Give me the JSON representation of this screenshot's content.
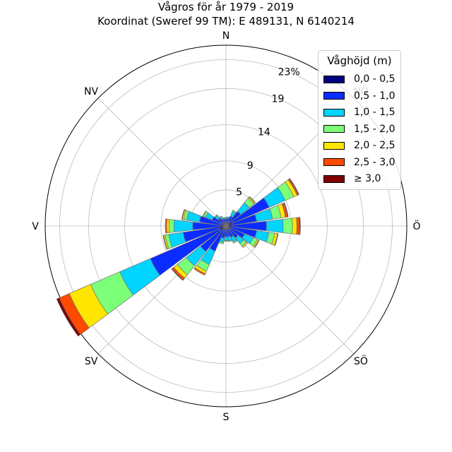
{
  "title_line1": "Vågros för år 1979 - 2019",
  "title_line2": "Koordinat (Sweref 99 TM): E 489131, N 6140214",
  "chart_data": {
    "type": "wind-rose",
    "title": "Vågros för år 1979 - 2019",
    "subtitle": "Koordinat (Sweref 99 TM): E 489131, N 6140214",
    "radial_unit": "%",
    "radial_ticks": [
      "5",
      "9",
      "14",
      "19",
      "23%"
    ],
    "radial_tick_values": [
      5,
      9,
      14,
      19,
      23
    ],
    "rmax": 25,
    "grid": true,
    "direction_labels": [
      "N",
      "NV",
      "V",
      "SV",
      "S",
      "SÖ",
      "Ö",
      "NÖ"
    ],
    "direction_angles": [
      0,
      315,
      270,
      225,
      180,
      135,
      90,
      45
    ],
    "sector_width_deg": 15,
    "legend": {
      "title": "Våghöjd (m)",
      "placement": "top-right",
      "bins": [
        "0,0 - 0,5",
        "0,5 - 1,0",
        "1,0 - 1,5",
        "1,5 - 2,0",
        "2,0 - 2,5",
        "2,5 - 3,0",
        "≥ 3,0"
      ],
      "colors": [
        "#000080",
        "#0a2cff",
        "#00d4ff",
        "#7cff79",
        "#ffe600",
        "#ff4a00",
        "#800000"
      ]
    },
    "sectors": [
      {
        "dir": 0,
        "values": [
          0.5,
          0.5,
          0.2,
          0,
          0,
          0,
          0
        ]
      },
      {
        "dir": 15,
        "values": [
          0.5,
          0.6,
          0.2,
          0,
          0,
          0,
          0
        ]
      },
      {
        "dir": 30,
        "values": [
          0.5,
          1.0,
          0.7,
          0.2,
          0,
          0,
          0
        ]
      },
      {
        "dir": 45,
        "values": [
          0.6,
          2.0,
          1.5,
          0.8,
          0.2,
          0.1,
          0
        ]
      },
      {
        "dir": 60,
        "values": [
          1.0,
          5.5,
          2.4,
          1.3,
          0.5,
          0.2,
          0.1
        ]
      },
      {
        "dir": 75,
        "values": [
          0.8,
          3.5,
          2.2,
          1.2,
          0.6,
          0.3,
          0.1
        ]
      },
      {
        "dir": 90,
        "values": [
          0.9,
          4.7,
          2.3,
          1.3,
          0.6,
          0.4,
          0.1
        ]
      },
      {
        "dir": 105,
        "values": [
          0.7,
          3.6,
          1.7,
          0.8,
          0.4,
          0.1,
          0
        ]
      },
      {
        "dir": 120,
        "values": [
          0.6,
          2.2,
          1.3,
          0.6,
          0.2,
          0.1,
          0
        ]
      },
      {
        "dir": 135,
        "values": [
          0.5,
          1.6,
          1.0,
          0.5,
          0.2,
          0,
          0
        ]
      },
      {
        "dir": 150,
        "values": [
          0.5,
          1.2,
          0.7,
          0.2,
          0,
          0,
          0
        ]
      },
      {
        "dir": 165,
        "values": [
          0.5,
          1.0,
          0.6,
          0.1,
          0,
          0,
          0
        ]
      },
      {
        "dir": 180,
        "values": [
          0.5,
          1.0,
          0.5,
          0.1,
          0,
          0,
          0
        ]
      },
      {
        "dir": 195,
        "values": [
          0.5,
          1.2,
          0.6,
          0.2,
          0,
          0,
          0
        ]
      },
      {
        "dir": 210,
        "values": [
          0.6,
          3.2,
          2.0,
          1.0,
          0.4,
          0.2,
          0
        ]
      },
      {
        "dir": 225,
        "values": [
          0.5,
          4.0,
          2.5,
          1.6,
          0.6,
          0.3,
          0.1
        ]
      },
      {
        "dir": 240,
        "values": [
          1.0,
          10.4,
          4.6,
          4.4,
          3.2,
          1.5,
          0.4
        ]
      },
      {
        "dir": 255,
        "values": [
          1.0,
          5.0,
          2.0,
          0.5,
          0.2,
          0.1,
          0
        ]
      },
      {
        "dir": 270,
        "values": [
          0.8,
          3.8,
          2.6,
          0.7,
          0.3,
          0.2,
          0
        ]
      },
      {
        "dir": 285,
        "values": [
          0.7,
          3.0,
          1.8,
          0.4,
          0.2,
          0.1,
          0
        ]
      },
      {
        "dir": 300,
        "values": [
          0.6,
          1.5,
          1.0,
          0.3,
          0.1,
          0,
          0
        ]
      },
      {
        "dir": 315,
        "values": [
          0.5,
          0.9,
          0.5,
          0.1,
          0,
          0,
          0
        ]
      },
      {
        "dir": 330,
        "values": [
          0.5,
          0.6,
          0.3,
          0.1,
          0,
          0,
          0
        ]
      },
      {
        "dir": 345,
        "values": [
          0.5,
          0.5,
          0.2,
          0,
          0,
          0,
          0
        ]
      }
    ]
  }
}
